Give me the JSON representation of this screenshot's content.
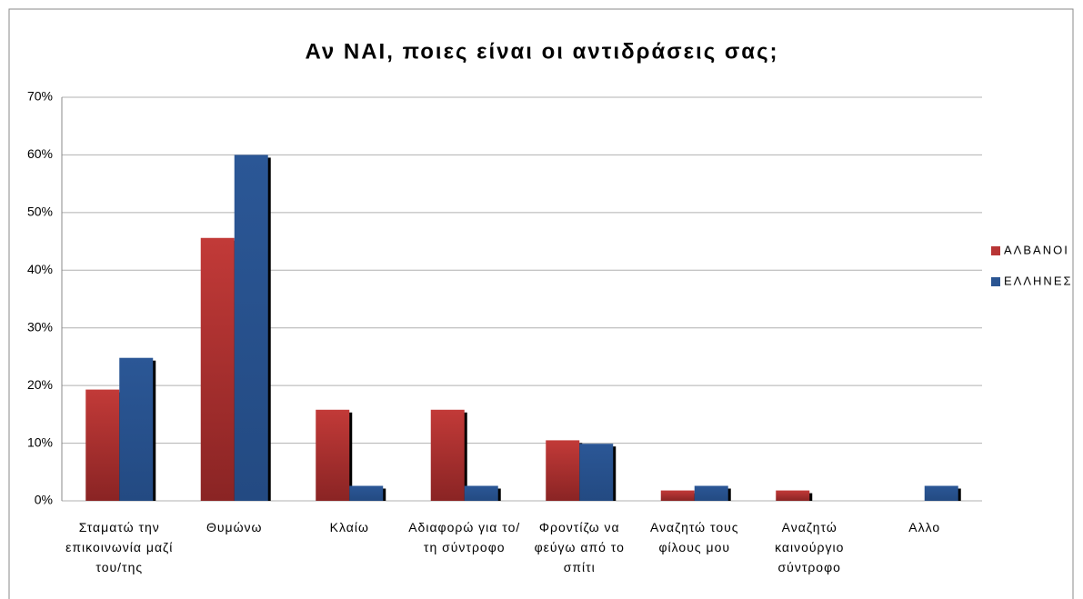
{
  "chart_data": {
    "type": "bar",
    "title": "Αν ΝΑΙ, ποιες είναι οι αντιδράσεις σας;",
    "categories": [
      "Σταματώ την επικοινωνία μαζί του/της",
      "Θυμώνω",
      "Κλαίω",
      "Αδιαφορώ για το/τη σύντροφο",
      "Φροντίζω να φεύγω από το σπίτι",
      "Αναζητώ τους φίλους μου",
      "Αναζητώ καινούργιο σύντροφο",
      "Αλλο"
    ],
    "series": [
      {
        "name": "ΑΛΒΑΝΟΙ",
        "color": "#b83535",
        "values": [
          19.3,
          45.6,
          15.8,
          15.8,
          10.5,
          1.8,
          1.8,
          0
        ]
      },
      {
        "name": "ΕΛΛΗΝΕΣ",
        "color": "#2a5592",
        "values": [
          24.8,
          60,
          2.6,
          2.6,
          9.9,
          2.6,
          0,
          2.6
        ]
      }
    ],
    "ylim": [
      0,
      70
    ],
    "yticks": [
      {
        "value": 0,
        "label": "0%"
      },
      {
        "value": 10,
        "label": "10%"
      },
      {
        "value": 20,
        "label": "20%"
      },
      {
        "value": 30,
        "label": "30%"
      },
      {
        "value": 40,
        "label": "40%"
      },
      {
        "value": 50,
        "label": "50%"
      },
      {
        "value": 60,
        "label": "60%"
      },
      {
        "value": 70,
        "label": "70%"
      }
    ],
    "grid": true,
    "legend": "right"
  }
}
